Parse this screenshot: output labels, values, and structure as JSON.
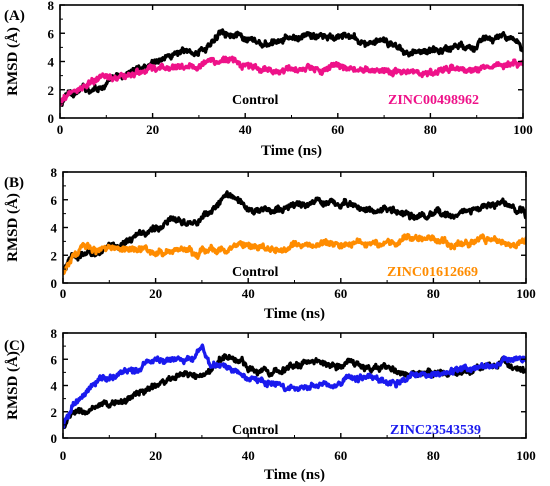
{
  "chart_data": [
    {
      "type": "line",
      "panel_label": "(A)",
      "xlabel": "Time (ns)",
      "ylabel": "RMSD (Å)",
      "xlim": [
        0,
        100
      ],
      "ylim": [
        0,
        8
      ],
      "xticks": [
        "0",
        "20",
        "40",
        "60",
        "80",
        "100"
      ],
      "yticks": [
        "0",
        "2",
        "4",
        "6",
        "8"
      ],
      "grid": false,
      "series": [
        {
          "name": "Control",
          "color": "#000000",
          "x": [
            0,
            2,
            5,
            10,
            15,
            20,
            25,
            30,
            33,
            35,
            37,
            40,
            45,
            50,
            55,
            60,
            62,
            65,
            70,
            75,
            80,
            85,
            90,
            95,
            100
          ],
          "y": [
            0.8,
            1.8,
            2.0,
            2.4,
            3.2,
            4.0,
            4.6,
            4.7,
            5.3,
            6.4,
            6.1,
            5.4,
            5.1,
            5.6,
            5.8,
            5.6,
            5.9,
            5.3,
            5.3,
            4.8,
            4.7,
            5.1,
            5.3,
            5.8,
            4.9
          ]
        },
        {
          "name": "ZINC00498962",
          "color": "#ee1289",
          "x": [
            0,
            2,
            5,
            10,
            15,
            20,
            25,
            30,
            35,
            38,
            40,
            45,
            50,
            55,
            60,
            65,
            70,
            75,
            80,
            85,
            90,
            95,
            100
          ],
          "y": [
            0.8,
            1.8,
            2.2,
            2.9,
            3.0,
            3.4,
            3.6,
            3.8,
            4.0,
            4.2,
            3.6,
            3.4,
            3.3,
            3.4,
            3.6,
            3.3,
            3.5,
            3.3,
            3.2,
            3.4,
            3.5,
            3.9,
            4.1
          ]
        }
      ],
      "legend": [
        "Control",
        "ZINC00498962"
      ]
    },
    {
      "type": "line",
      "panel_label": "(B)",
      "xlabel": "Time (ns)",
      "ylabel": "RMSD (Å)",
      "xlim": [
        0,
        100
      ],
      "ylim": [
        0,
        8
      ],
      "xticks": [
        "0",
        "20",
        "40",
        "60",
        "80",
        "100"
      ],
      "yticks": [
        "0",
        "2",
        "4",
        "6",
        "8"
      ],
      "grid": false,
      "series": [
        {
          "name": "Control",
          "color": "#000000",
          "x": [
            0,
            2,
            5,
            10,
            15,
            20,
            25,
            30,
            33,
            35,
            37,
            40,
            45,
            50,
            55,
            60,
            62,
            65,
            70,
            75,
            80,
            85,
            90,
            95,
            100
          ],
          "y": [
            0.8,
            1.8,
            2.0,
            2.4,
            3.2,
            4.0,
            4.6,
            4.7,
            5.3,
            6.4,
            6.1,
            5.4,
            5.1,
            5.6,
            5.8,
            5.6,
            5.9,
            5.3,
            5.3,
            4.8,
            4.7,
            5.1,
            5.3,
            5.8,
            4.9
          ]
        },
        {
          "name": "ZINC01612669",
          "color": "#ff8c00",
          "x": [
            0,
            2,
            5,
            10,
            15,
            20,
            25,
            30,
            35,
            40,
            45,
            50,
            55,
            60,
            65,
            70,
            75,
            80,
            85,
            90,
            95,
            100
          ],
          "y": [
            0.8,
            2.0,
            2.5,
            2.4,
            2.6,
            2.2,
            2.4,
            2.3,
            2.5,
            2.6,
            2.4,
            2.6,
            2.9,
            2.7,
            3.0,
            2.8,
            3.4,
            3.0,
            2.8,
            3.3,
            3.0,
            3.2
          ]
        }
      ],
      "legend": [
        "Control",
        "ZINC01612669"
      ]
    },
    {
      "type": "line",
      "panel_label": "(C)",
      "xlabel": "Time (ns)",
      "ylabel": "RMSD (Å)",
      "xlim": [
        0,
        100
      ],
      "ylim": [
        0,
        8
      ],
      "xticks": [
        "0",
        "20",
        "40",
        "60",
        "80",
        "100"
      ],
      "yticks": [
        "0",
        "2",
        "4",
        "6",
        "8"
      ],
      "grid": false,
      "series": [
        {
          "name": "Control",
          "color": "#000000",
          "x": [
            0,
            2,
            5,
            10,
            15,
            20,
            25,
            30,
            33,
            35,
            37,
            40,
            45,
            50,
            55,
            60,
            62,
            65,
            70,
            75,
            80,
            85,
            90,
            95,
            100
          ],
          "y": [
            0.8,
            1.8,
            2.0,
            2.4,
            3.2,
            4.0,
            4.6,
            4.7,
            5.3,
            6.4,
            6.1,
            5.4,
            5.1,
            5.6,
            5.8,
            5.6,
            5.9,
            5.3,
            5.3,
            4.8,
            4.7,
            5.1,
            5.3,
            5.8,
            4.9
          ]
        },
        {
          "name": "ZINC23543539",
          "color": "#1a1aee",
          "x": [
            0,
            2,
            5,
            8,
            12,
            15,
            20,
            25,
            28,
            30,
            32,
            35,
            40,
            45,
            50,
            55,
            60,
            65,
            70,
            75,
            80,
            85,
            90,
            95,
            100
          ],
          "y": [
            0.8,
            2.5,
            3.3,
            4.5,
            4.8,
            5.1,
            5.9,
            6.1,
            6.3,
            7.1,
            5.7,
            5.4,
            4.6,
            4.2,
            3.8,
            4.0,
            4.2,
            4.5,
            4.3,
            4.6,
            4.8,
            5.2,
            5.4,
            5.9,
            6.1
          ]
        }
      ],
      "legend": [
        "Control",
        "ZINC23543539"
      ]
    }
  ]
}
